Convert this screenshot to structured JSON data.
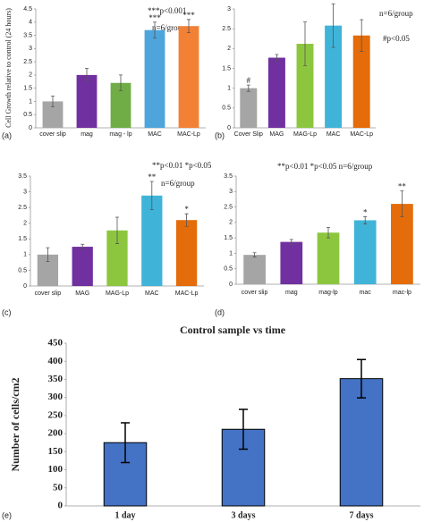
{
  "chart_data": [
    {
      "type": "bar",
      "panel_label": "(a)",
      "y_label": "Cell Growth relative to control (24 hours)",
      "categories": [
        "cover slip",
        "mag",
        "mag - lp",
        "MAC",
        "MAC-Lp"
      ],
      "values": [
        1.0,
        2.0,
        1.7,
        3.7,
        3.85
      ],
      "errors": [
        0.2,
        0.25,
        0.3,
        0.3,
        0.25
      ],
      "colors": [
        "#a5a5a5",
        "#7030a0",
        "#70ad47",
        "#4ea5dc",
        "#f28035"
      ],
      "bar_annotations": [
        null,
        null,
        null,
        "***",
        "***"
      ],
      "annotations": [
        "***p<0.001",
        "n=6/group"
      ],
      "ylim": [
        0,
        4.5
      ],
      "yticks": [
        0,
        0.5,
        1,
        1.5,
        2,
        2.5,
        3,
        3.5,
        4,
        4.5
      ],
      "grid": false
    },
    {
      "type": "bar",
      "panel_label": "(b)",
      "categories": [
        "Cover Slip",
        "MAG",
        "MAG-Lp",
        "MAC",
        "MAC-Lp"
      ],
      "values": [
        1.0,
        1.77,
        2.12,
        2.58,
        2.33
      ],
      "errors": [
        0.08,
        0.08,
        0.55,
        0.55,
        0.4
      ],
      "colors": [
        "#a5a5a5",
        "#7030a0",
        "#8cc63f",
        "#40b4d8",
        "#e46c0a"
      ],
      "bar_annotations": [
        "#",
        null,
        null,
        null,
        null
      ],
      "annotations": [
        "n=6/group",
        "#p<0.05"
      ],
      "ylim": [
        0,
        3
      ],
      "yticks": [
        0,
        0.5,
        1,
        1.5,
        2,
        2.5,
        3
      ],
      "grid": false
    },
    {
      "type": "bar",
      "panel_label": "(c)",
      "categories": [
        "cover slip",
        "MAG",
        "MAG-Lp",
        "MAC",
        "MAC-Lp"
      ],
      "values": [
        1.0,
        1.25,
        1.77,
        2.88,
        2.1
      ],
      "errors": [
        0.22,
        0.08,
        0.42,
        0.45,
        0.2
      ],
      "colors": [
        "#a5a5a5",
        "#7030a0",
        "#8cc63f",
        "#40b4d8",
        "#e46c0a"
      ],
      "bar_annotations": [
        null,
        null,
        null,
        "**",
        "*"
      ],
      "annotations": [
        "**p<0.01 *p<0.05",
        "n=6/group"
      ],
      "ylim": [
        0,
        3.5
      ],
      "yticks": [
        0,
        0.5,
        1,
        1.5,
        2,
        2.5,
        3,
        3.5
      ],
      "grid": false
    },
    {
      "type": "bar",
      "panel_label": "(d)",
      "categories": [
        "cover slip",
        "mag",
        "mag-lp",
        "mac",
        "mac-lp"
      ],
      "values": [
        0.95,
        1.37,
        1.67,
        2.07,
        2.6
      ],
      "errors": [
        0.07,
        0.08,
        0.17,
        0.12,
        0.42
      ],
      "colors": [
        "#a5a5a5",
        "#7030a0",
        "#8cc63f",
        "#40b4d8",
        "#e46c0a"
      ],
      "bar_annotations": [
        null,
        null,
        null,
        "*",
        "**"
      ],
      "annotations": [
        "**p<0.01 *p<0.05 n=6/group"
      ],
      "ylim": [
        0,
        3.5
      ],
      "yticks": [
        0,
        0.5,
        1,
        1.5,
        2,
        2.5,
        3,
        3.5
      ],
      "grid": false
    },
    {
      "type": "bar",
      "panel_label": "(e)",
      "title": "Control sample vs time",
      "y_label": "Number of cells/cm2",
      "categories": [
        "1 day",
        "3 days",
        "7 days"
      ],
      "values": [
        175,
        212,
        352
      ],
      "errors": [
        55,
        55,
        53
      ],
      "color": "#4472c4",
      "ylim": [
        0,
        450
      ],
      "yticks": [
        0,
        50,
        100,
        150,
        200,
        250,
        300,
        350,
        400,
        450
      ],
      "grid": false
    }
  ]
}
